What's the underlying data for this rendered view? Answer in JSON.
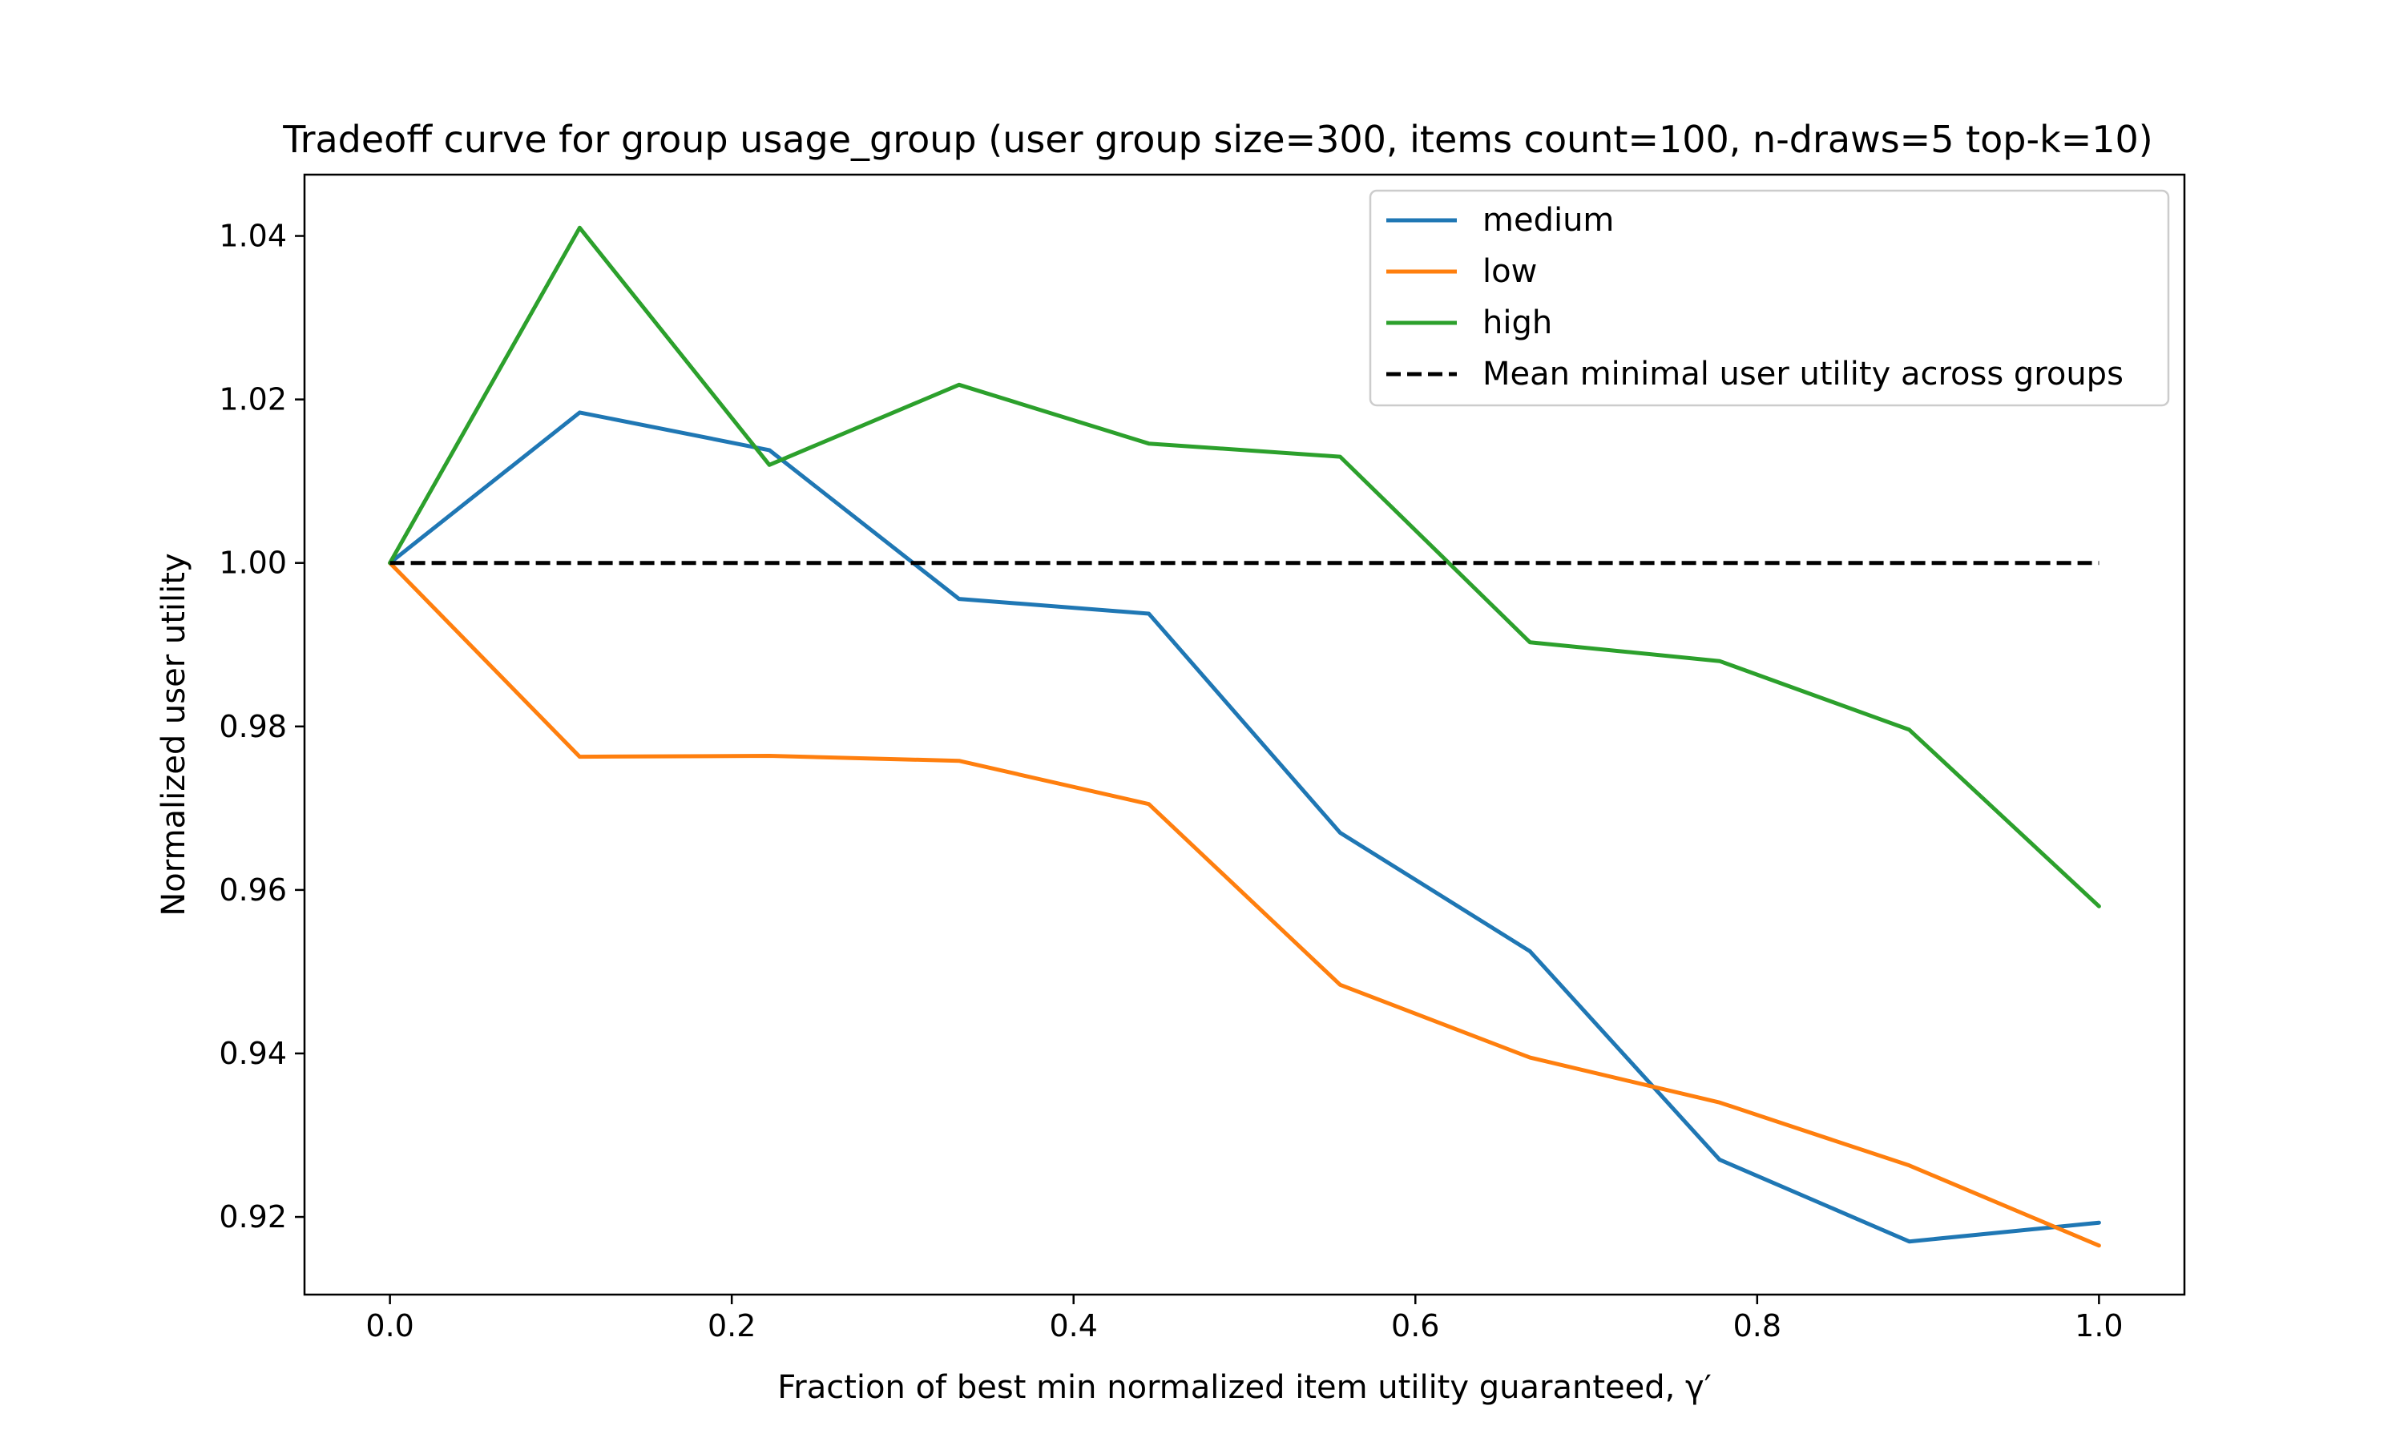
{
  "chart_data": {
    "type": "line",
    "title": "Tradeoff curve for group usage_group (user group size=300, items count=100, n-draws=5 top-k=10)",
    "xlabel": "Fraction of best min normalized item utility guaranteed, γ′",
    "ylabel": "Normalized user utility",
    "xlim": [
      -0.05,
      1.05
    ],
    "ylim": [
      0.9105,
      1.0475
    ],
    "xticks": [
      0.0,
      0.2,
      0.4,
      0.6,
      0.8,
      1.0
    ],
    "xtick_labels": [
      "0.0",
      "0.2",
      "0.4",
      "0.6",
      "0.8",
      "1.0"
    ],
    "yticks": [
      0.92,
      0.94,
      0.96,
      0.98,
      1.0,
      1.02,
      1.04
    ],
    "ytick_labels": [
      "0.92",
      "0.94",
      "0.96",
      "0.98",
      "1.00",
      "1.02",
      "1.04"
    ],
    "grid": false,
    "legend_position": "top-right",
    "x": [
      0.0,
      0.111,
      0.222,
      0.333,
      0.444,
      0.556,
      0.667,
      0.778,
      0.889,
      1.0
    ],
    "series": [
      {
        "name": "medium",
        "color": "#1f77b4",
        "style": "solid",
        "values": [
          1.0,
          1.0184,
          1.0138,
          0.9956,
          0.9938,
          0.967,
          0.9525,
          0.927,
          0.917,
          0.9193
        ]
      },
      {
        "name": "low",
        "color": "#ff7f0e",
        "style": "solid",
        "values": [
          1.0,
          0.9763,
          0.9764,
          0.9758,
          0.9705,
          0.9484,
          0.9395,
          0.934,
          0.9263,
          0.9165
        ]
      },
      {
        "name": "high",
        "color": "#2ca02c",
        "style": "solid",
        "values": [
          1.0,
          1.041,
          1.012,
          1.0218,
          1.0146,
          1.013,
          0.9903,
          0.988,
          0.9796,
          0.958
        ]
      },
      {
        "name": "Mean minimal user utility across groups",
        "color": "#000000",
        "style": "dashed",
        "values": [
          1.0,
          1.0,
          1.0,
          1.0,
          1.0,
          1.0,
          1.0,
          1.0,
          1.0,
          1.0
        ]
      }
    ]
  }
}
